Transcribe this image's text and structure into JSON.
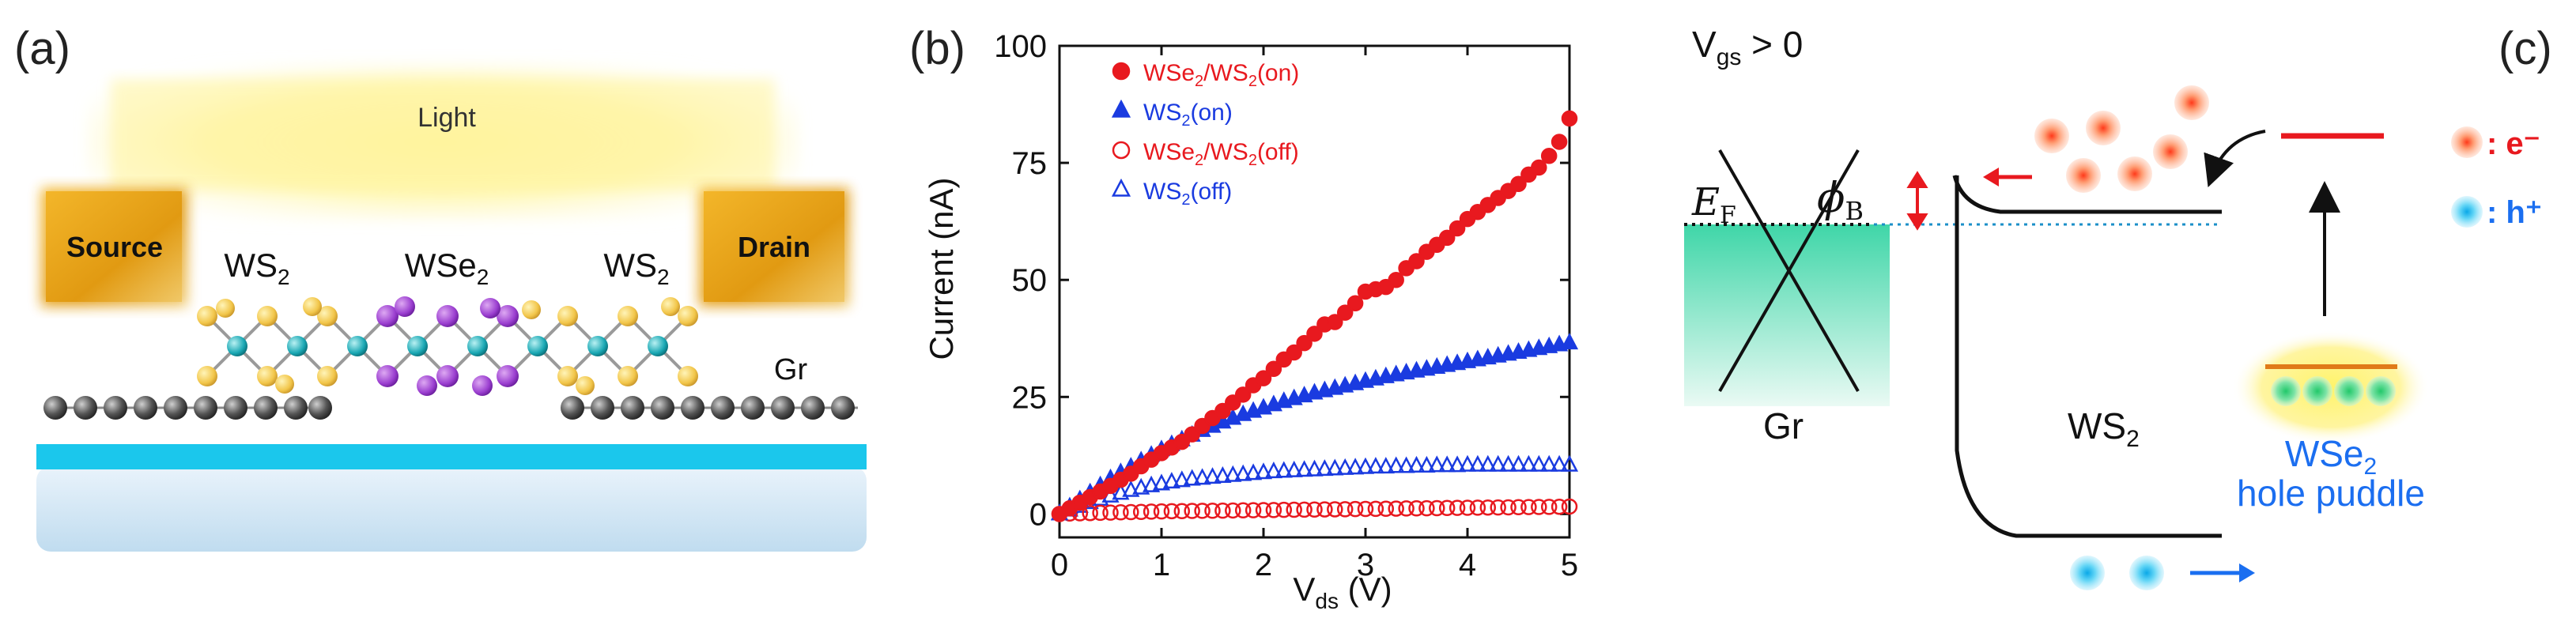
{
  "panels": {
    "a": {
      "label": "(a)",
      "light": "Light",
      "source": "Source",
      "drain": "Drain",
      "ws2_left": "WS",
      "ws2_left_sub": "2",
      "wse2": "WSe",
      "wse2_sub": "2",
      "ws2_right": "WS",
      "ws2_right_sub": "2",
      "gr": "Gr"
    },
    "b": {
      "label": "(b)"
    },
    "c": {
      "label": "(c)",
      "vgs": "V",
      "vgs_sub": "gs",
      "vgs_rest": " > 0",
      "ef": "E",
      "ef_sub": "F",
      "phi": "ϕ",
      "phi_sub": "B",
      "gr": "Gr",
      "ws2": "WS",
      "ws2_sub": "2",
      "puddle_line1": "WSe",
      "puddle_line1_sub": "2",
      "puddle_line2": "hole puddle",
      "electron_legend": ": e⁻",
      "hole_legend": ": h⁺"
    }
  },
  "colors": {
    "red": "#e8191f",
    "blue": "#1a3be0",
    "cyan": "#18c8e8",
    "source_gold": "#e4a21a"
  },
  "chart_data": {
    "type": "scatter",
    "xlabel": "V",
    "xlabel_sub": "ds",
    "xlabel_unit": " (V)",
    "ylabel": "Current (nA)",
    "xlim": [
      0,
      5
    ],
    "ylim": [
      -5,
      100
    ],
    "xticks": [
      0,
      1,
      2,
      3,
      4,
      5
    ],
    "yticks": [
      0,
      25,
      50,
      75,
      100
    ],
    "legend": [
      {
        "main": "WSe",
        "sub1": "2",
        "mid": "/WS",
        "sub2": "2",
        "tail": "(on)",
        "color": "#e8191f",
        "marker": "filled-circle"
      },
      {
        "main": "WS",
        "sub1": "2",
        "mid": "",
        "sub2": "",
        "tail": "(on)",
        "color": "#1a3be0",
        "marker": "filled-triangle"
      },
      {
        "main": "WSe",
        "sub1": "2",
        "mid": "/WS",
        "sub2": "2",
        "tail": "(off)",
        "color": "#e8191f",
        "marker": "open-circle"
      },
      {
        "main": "WS",
        "sub1": "2",
        "mid": "",
        "sub2": "",
        "tail": "(off)",
        "color": "#1a3be0",
        "marker": "open-triangle"
      }
    ],
    "series": [
      {
        "name": "WSe2/WS2(on)",
        "marker": "filled-circle",
        "color": "#e8191f",
        "x": [
          0,
          0.1,
          0.2,
          0.3,
          0.4,
          0.5,
          0.6,
          0.7,
          0.8,
          0.9,
          1.0,
          1.1,
          1.2,
          1.3,
          1.4,
          1.5,
          1.6,
          1.7,
          1.8,
          1.9,
          2.0,
          2.1,
          2.2,
          2.3,
          2.4,
          2.5,
          2.6,
          2.7,
          2.8,
          2.9,
          3.0,
          3.1,
          3.2,
          3.3,
          3.4,
          3.5,
          3.6,
          3.7,
          3.8,
          3.9,
          4.0,
          4.1,
          4.2,
          4.3,
          4.4,
          4.5,
          4.6,
          4.7,
          4.8,
          4.9,
          5.0
        ],
        "y": [
          0,
          1.2,
          2.4,
          3.6,
          4.8,
          6.0,
          7.3,
          8.6,
          10.2,
          11.6,
          13.0,
          14.2,
          15.4,
          17.0,
          18.8,
          20.5,
          22.0,
          23.8,
          25.5,
          27.5,
          29.0,
          31.0,
          33.0,
          34.5,
          36.5,
          38.5,
          40.5,
          41.0,
          43.0,
          45.0,
          47.5,
          48.0,
          48.5,
          50.0,
          52.5,
          54.0,
          56.0,
          57.5,
          59.0,
          61.0,
          63.0,
          64.5,
          66.0,
          67.5,
          69.0,
          70.5,
          72.5,
          74.0,
          76.5,
          79.5,
          84.5
        ]
      },
      {
        "name": "WS2(on)",
        "marker": "filled-triangle",
        "color": "#1a3be0",
        "x": [
          0,
          0.1,
          0.2,
          0.3,
          0.4,
          0.5,
          0.6,
          0.7,
          0.8,
          0.9,
          1.0,
          1.1,
          1.2,
          1.3,
          1.4,
          1.5,
          1.6,
          1.7,
          1.8,
          1.9,
          2.0,
          2.1,
          2.2,
          2.3,
          2.4,
          2.5,
          2.6,
          2.7,
          2.8,
          2.9,
          3.0,
          3.1,
          3.2,
          3.3,
          3.4,
          3.5,
          3.6,
          3.7,
          3.8,
          3.9,
          4.0,
          4.1,
          4.2,
          4.3,
          4.4,
          4.5,
          4.6,
          4.7,
          4.8,
          4.9,
          5.0
        ],
        "y": [
          0,
          1.5,
          3.0,
          4.5,
          6.0,
          7.5,
          8.8,
          10.0,
          11.3,
          12.5,
          13.7,
          14.8,
          15.8,
          16.8,
          17.8,
          18.7,
          19.6,
          20.4,
          21.2,
          21.9,
          22.6,
          23.3,
          24.0,
          24.6,
          25.2,
          25.8,
          26.3,
          26.8,
          27.3,
          27.8,
          28.3,
          28.8,
          29.3,
          29.7,
          30.1,
          30.5,
          30.9,
          31.3,
          31.7,
          32.1,
          32.5,
          32.9,
          33.3,
          33.7,
          34.1,
          34.5,
          34.9,
          35.3,
          35.7,
          36.1,
          36.5
        ]
      },
      {
        "name": "WSe2/WS2(off)",
        "marker": "open-circle",
        "color": "#e8191f",
        "x": [
          0,
          0.1,
          0.2,
          0.3,
          0.4,
          0.5,
          0.6,
          0.7,
          0.8,
          0.9,
          1.0,
          1.1,
          1.2,
          1.3,
          1.4,
          1.5,
          1.6,
          1.7,
          1.8,
          1.9,
          2.0,
          2.1,
          2.2,
          2.3,
          2.4,
          2.5,
          2.6,
          2.7,
          2.8,
          2.9,
          3.0,
          3.1,
          3.2,
          3.3,
          3.4,
          3.5,
          3.6,
          3.7,
          3.8,
          3.9,
          4.0,
          4.1,
          4.2,
          4.3,
          4.4,
          4.5,
          4.6,
          4.7,
          4.8,
          4.9,
          5.0
        ],
        "y": [
          0,
          0.1,
          0.15,
          0.2,
          0.25,
          0.3,
          0.35,
          0.4,
          0.45,
          0.5,
          0.55,
          0.6,
          0.62,
          0.65,
          0.68,
          0.7,
          0.72,
          0.75,
          0.78,
          0.8,
          0.82,
          0.85,
          0.88,
          0.9,
          0.92,
          0.95,
          0.98,
          1.0,
          1.02,
          1.05,
          1.08,
          1.1,
          1.12,
          1.15,
          1.18,
          1.2,
          1.22,
          1.25,
          1.28,
          1.3,
          1.32,
          1.35,
          1.38,
          1.4,
          1.42,
          1.45,
          1.48,
          1.5,
          1.52,
          1.55,
          1.58
        ]
      },
      {
        "name": "WS2(off)",
        "marker": "open-triangle",
        "color": "#1a3be0",
        "x": [
          0,
          0.1,
          0.2,
          0.3,
          0.4,
          0.5,
          0.6,
          0.7,
          0.8,
          0.9,
          1.0,
          1.1,
          1.2,
          1.3,
          1.4,
          1.5,
          1.6,
          1.7,
          1.8,
          1.9,
          2.0,
          2.1,
          2.2,
          2.3,
          2.4,
          2.5,
          2.6,
          2.7,
          2.8,
          2.9,
          3.0,
          3.1,
          3.2,
          3.3,
          3.4,
          3.5,
          3.6,
          3.7,
          3.8,
          3.9,
          4.0,
          4.1,
          4.2,
          4.3,
          4.4,
          4.5,
          4.6,
          4.7,
          4.8,
          4.9,
          5.0
        ],
        "y": [
          0,
          0.8,
          1.6,
          2.4,
          3.1,
          3.8,
          4.4,
          5.0,
          5.5,
          6.0,
          6.4,
          6.8,
          7.1,
          7.4,
          7.6,
          7.8,
          8.0,
          8.2,
          8.4,
          8.6,
          8.8,
          9.0,
          9.1,
          9.2,
          9.3,
          9.4,
          9.5,
          9.6,
          9.7,
          9.8,
          9.9,
          10.0,
          10.0,
          10.1,
          10.1,
          10.2,
          10.2,
          10.3,
          10.3,
          10.3,
          10.4,
          10.4,
          10.4,
          10.4,
          10.4,
          10.4,
          10.4,
          10.4,
          10.4,
          10.4,
          10.4
        ]
      }
    ]
  }
}
